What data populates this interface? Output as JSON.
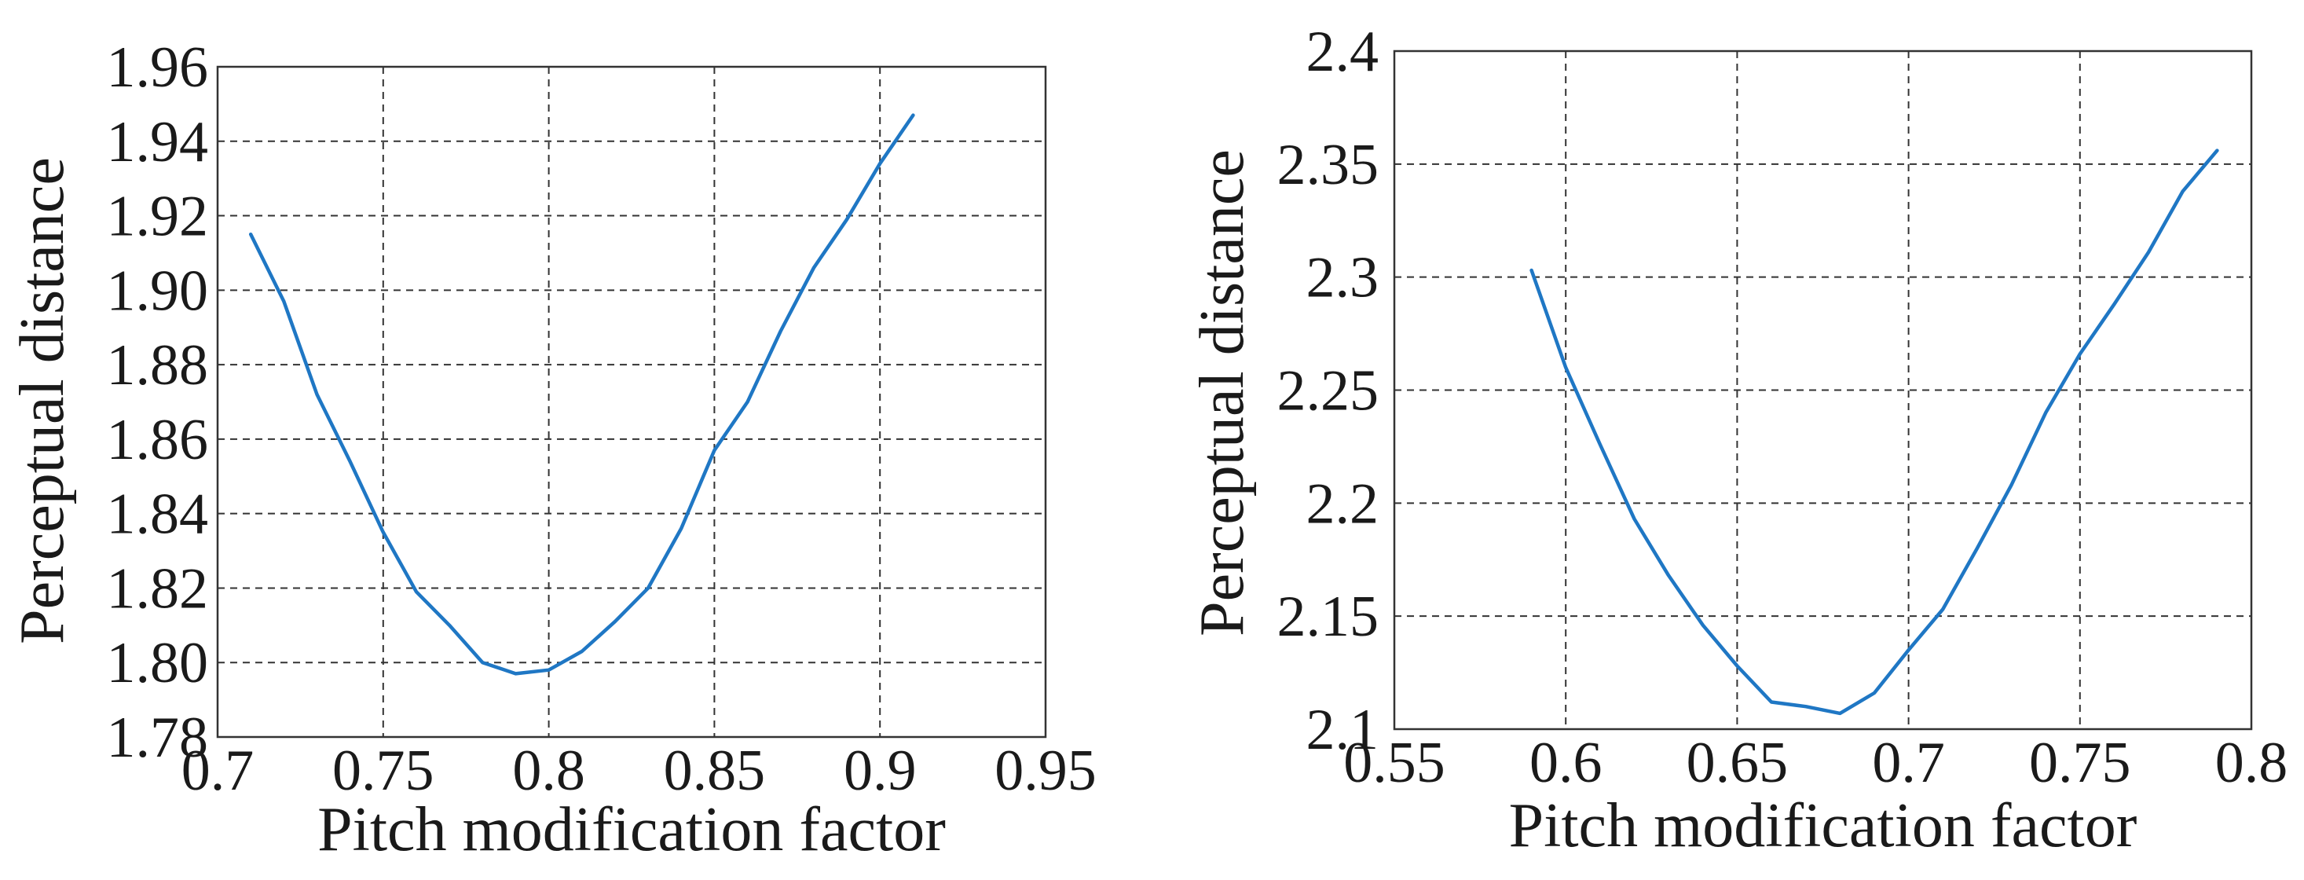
{
  "colors": {
    "series": "#1f77c4",
    "grid": "#333333",
    "frame": "#333333"
  },
  "chart_data": [
    {
      "type": "line",
      "title": "",
      "xlabel": "Pitch modification factor",
      "ylabel": "Perceptual distance",
      "xlim": [
        0.7,
        0.95
      ],
      "ylim": [
        1.78,
        1.96
      ],
      "grid": true,
      "xticks": [
        0.7,
        0.75,
        0.8,
        0.85,
        0.9,
        0.95
      ],
      "xtick_labels": [
        "0.7",
        "0.75",
        "0.8",
        "0.85",
        "0.9",
        "0.95"
      ],
      "yticks": [
        1.78,
        1.8,
        1.82,
        1.84,
        1.86,
        1.88,
        1.9,
        1.92,
        1.94,
        1.96
      ],
      "ytick_labels": [
        "1.78",
        "1.80",
        "1.82",
        "1.84",
        "1.86",
        "1.88",
        "1.90",
        "1.92",
        "1.94",
        "1.96"
      ],
      "series": [
        {
          "name": "Perceptual distance",
          "x": [
            0.71,
            0.72,
            0.73,
            0.74,
            0.75,
            0.76,
            0.77,
            0.78,
            0.79,
            0.8,
            0.81,
            0.82,
            0.83,
            0.84,
            0.85,
            0.86,
            0.87,
            0.88,
            0.89,
            0.9,
            0.91
          ],
          "y": [
            1.915,
            1.897,
            1.872,
            1.854,
            1.835,
            1.819,
            1.81,
            1.8,
            1.797,
            1.798,
            1.803,
            1.811,
            1.82,
            1.836,
            1.857,
            1.87,
            1.889,
            1.906,
            1.919,
            1.934,
            1.947
          ]
        }
      ]
    },
    {
      "type": "line",
      "title": "",
      "xlabel": "Pitch modification factor",
      "ylabel": "Perceptual distance",
      "xlim": [
        0.55,
        0.8
      ],
      "ylim": [
        2.1,
        2.4
      ],
      "grid": true,
      "xticks": [
        0.55,
        0.6,
        0.65,
        0.7,
        0.75,
        0.8
      ],
      "xtick_labels": [
        "0.55",
        "0.6",
        "0.65",
        "0.7",
        "0.75",
        "0.8"
      ],
      "yticks": [
        2.1,
        2.15,
        2.2,
        2.25,
        2.3,
        2.35,
        2.4
      ],
      "ytick_labels": [
        "2.1",
        "2.15",
        "2.2",
        "2.25",
        "2.3",
        "2.35",
        "2.4"
      ],
      "series": [
        {
          "name": "Perceptual distance",
          "x": [
            0.59,
            0.6,
            0.61,
            0.62,
            0.63,
            0.64,
            0.65,
            0.66,
            0.67,
            0.68,
            0.69,
            0.7,
            0.71,
            0.72,
            0.73,
            0.74,
            0.75,
            0.76,
            0.77,
            0.78,
            0.79
          ],
          "y": [
            2.303,
            2.26,
            2.226,
            2.193,
            2.168,
            2.146,
            2.128,
            2.112,
            2.11,
            2.107,
            2.116,
            2.135,
            2.153,
            2.18,
            2.208,
            2.24,
            2.266,
            2.288,
            2.311,
            2.338,
            2.356
          ]
        }
      ]
    }
  ]
}
